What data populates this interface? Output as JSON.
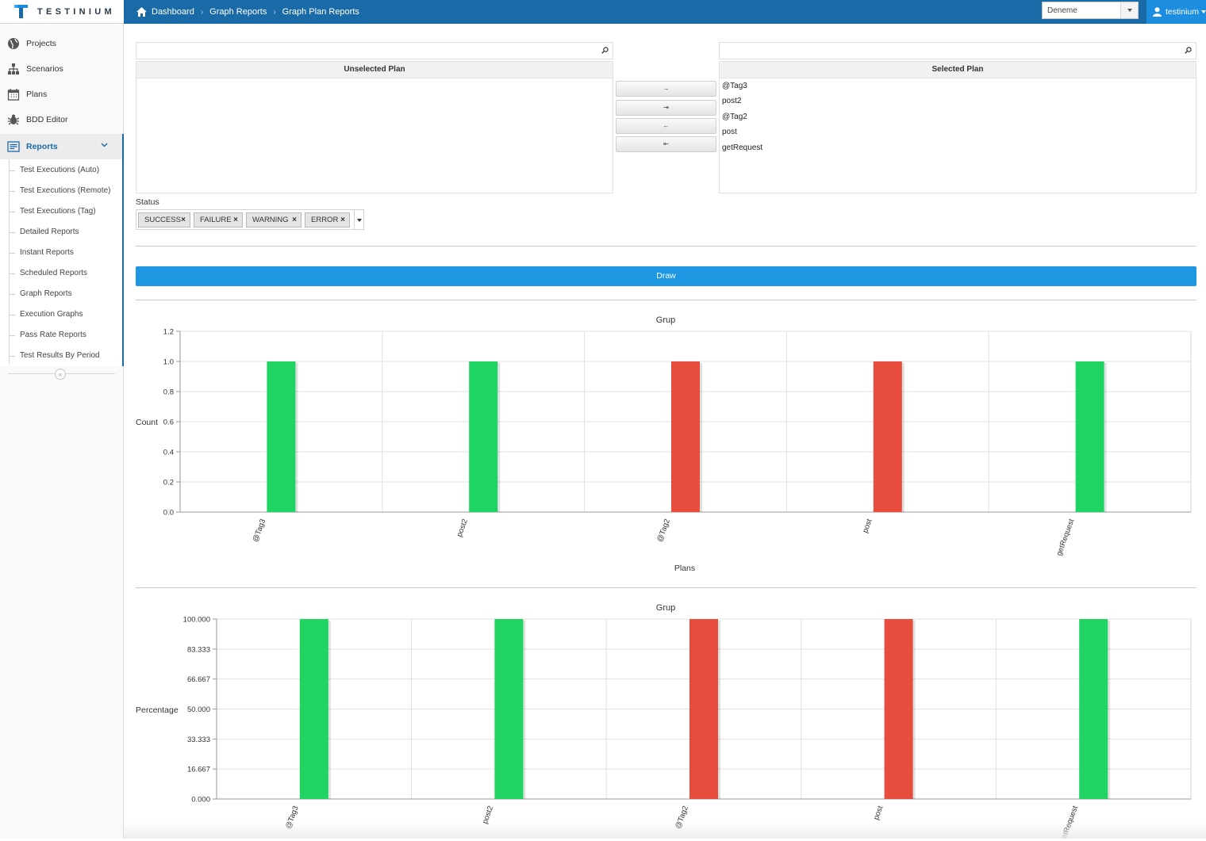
{
  "app": {
    "logo_text": "TESTINIUM",
    "breadcrumb": [
      "Dashboard",
      "Graph Reports",
      "Graph Plan Reports"
    ],
    "project_select": "Deneme",
    "user": "testinium"
  },
  "sidebar": {
    "items": [
      {
        "label": "Projects",
        "icon": "globe-icon"
      },
      {
        "label": "Scenarios",
        "icon": "sitemap-icon"
      },
      {
        "label": "Plans",
        "icon": "calendar-icon"
      },
      {
        "label": "BDD Editor",
        "icon": "bug-icon"
      },
      {
        "label": "Reports",
        "icon": "report-icon"
      }
    ],
    "report_submenu": [
      "Test Executions (Auto)",
      "Test Executions (Remote)",
      "Test Executions (Tag)",
      "Detailed Reports",
      "Instant Reports",
      "Scheduled Reports",
      "Graph Reports",
      "Execution Graphs",
      "Pass Rate Reports",
      "Test Results By Period"
    ],
    "collapse_label": "«"
  },
  "duallist": {
    "unselected_title": "Unselected Plan",
    "selected_title": "Selected Plan",
    "selected_items": [
      "@Tag3",
      "post2",
      "@Tag2",
      "post",
      "getRequest"
    ],
    "buttons": [
      "→",
      "⇥",
      "←",
      "⇤"
    ]
  },
  "status": {
    "label": "Status",
    "tags": [
      "SUCCESS",
      "FAILURE",
      "WARNING",
      "ERROR"
    ]
  },
  "draw_label": "Draw",
  "colors": {
    "green": "#1fd463",
    "red": "#e74c3c",
    "topbar": "#1a6aa7",
    "accent": "#1e97e3"
  },
  "chart_data": [
    {
      "type": "bar",
      "title": "Grup",
      "ylabel": "Count",
      "xlabel": "Plans",
      "categories": [
        "@Tag3",
        "post2",
        "@Tag2",
        "post",
        "getRequest"
      ],
      "values": [
        1,
        1,
        1,
        1,
        1
      ],
      "bar_colors": [
        "#1fd463",
        "#1fd463",
        "#e74c3c",
        "#e74c3c",
        "#1fd463"
      ],
      "yticks": [
        "0.0",
        "0.2",
        "0.4",
        "0.6",
        "0.8",
        "1.0",
        "1.2"
      ],
      "ylim": [
        0,
        1.2
      ]
    },
    {
      "type": "bar",
      "title": "Grup",
      "ylabel": "Percentage",
      "xlabel": "",
      "categories": [
        "@Tag3",
        "post2",
        "@Tag2",
        "post",
        "getRequest"
      ],
      "values": [
        100,
        100,
        100,
        100,
        100
      ],
      "bar_colors": [
        "#1fd463",
        "#1fd463",
        "#e74c3c",
        "#e74c3c",
        "#1fd463"
      ],
      "yticks": [
        "0.000",
        "16.667",
        "33.333",
        "50.000",
        "66.667",
        "83.333",
        "100.000"
      ],
      "ylim": [
        0,
        100
      ]
    }
  ]
}
